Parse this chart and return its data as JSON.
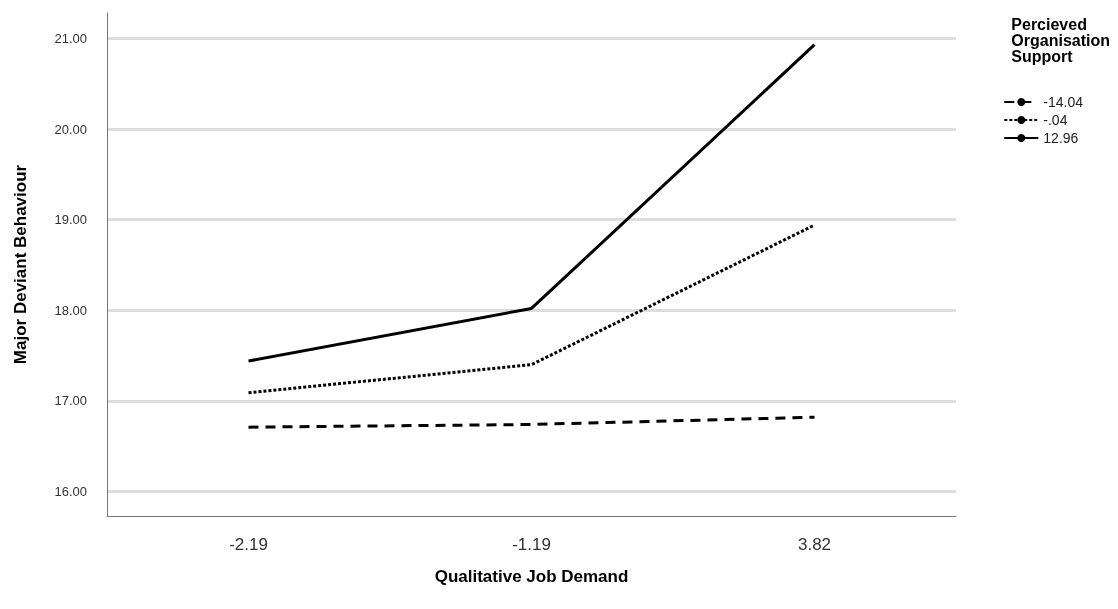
{
  "chart_data": {
    "type": "line",
    "xlabel": "Qualitative Job Demand",
    "ylabel": "Major Deviant Behaviour",
    "legend_title": "Percieved Organisation Support",
    "categories": [
      "-2.19",
      "-1.19",
      "3.82"
    ],
    "series": [
      {
        "name": "-14.04",
        "color": "#000000",
        "line_style": "dashed",
        "values": [
          16.71,
          16.74,
          16.82
        ]
      },
      {
        "name": "-.04",
        "color": "#000000",
        "line_style": "dotted",
        "values": [
          17.09,
          17.4,
          18.94
        ]
      },
      {
        "name": "12.96",
        "color": "#000000",
        "line_style": "solid",
        "values": [
          17.44,
          18.02,
          20.93
        ]
      }
    ],
    "ylim": [
      15.73,
      21.28
    ],
    "yticks": [
      {
        "value": 16,
        "label": "16.00"
      },
      {
        "value": 17,
        "label": "17.00"
      },
      {
        "value": 18,
        "label": "18.00"
      },
      {
        "value": 19,
        "label": "19.00"
      },
      {
        "value": 20,
        "label": "20.00"
      },
      {
        "value": 21,
        "label": "21.00"
      }
    ],
    "grid": "y",
    "legend": "top right",
    "marker": "none"
  }
}
